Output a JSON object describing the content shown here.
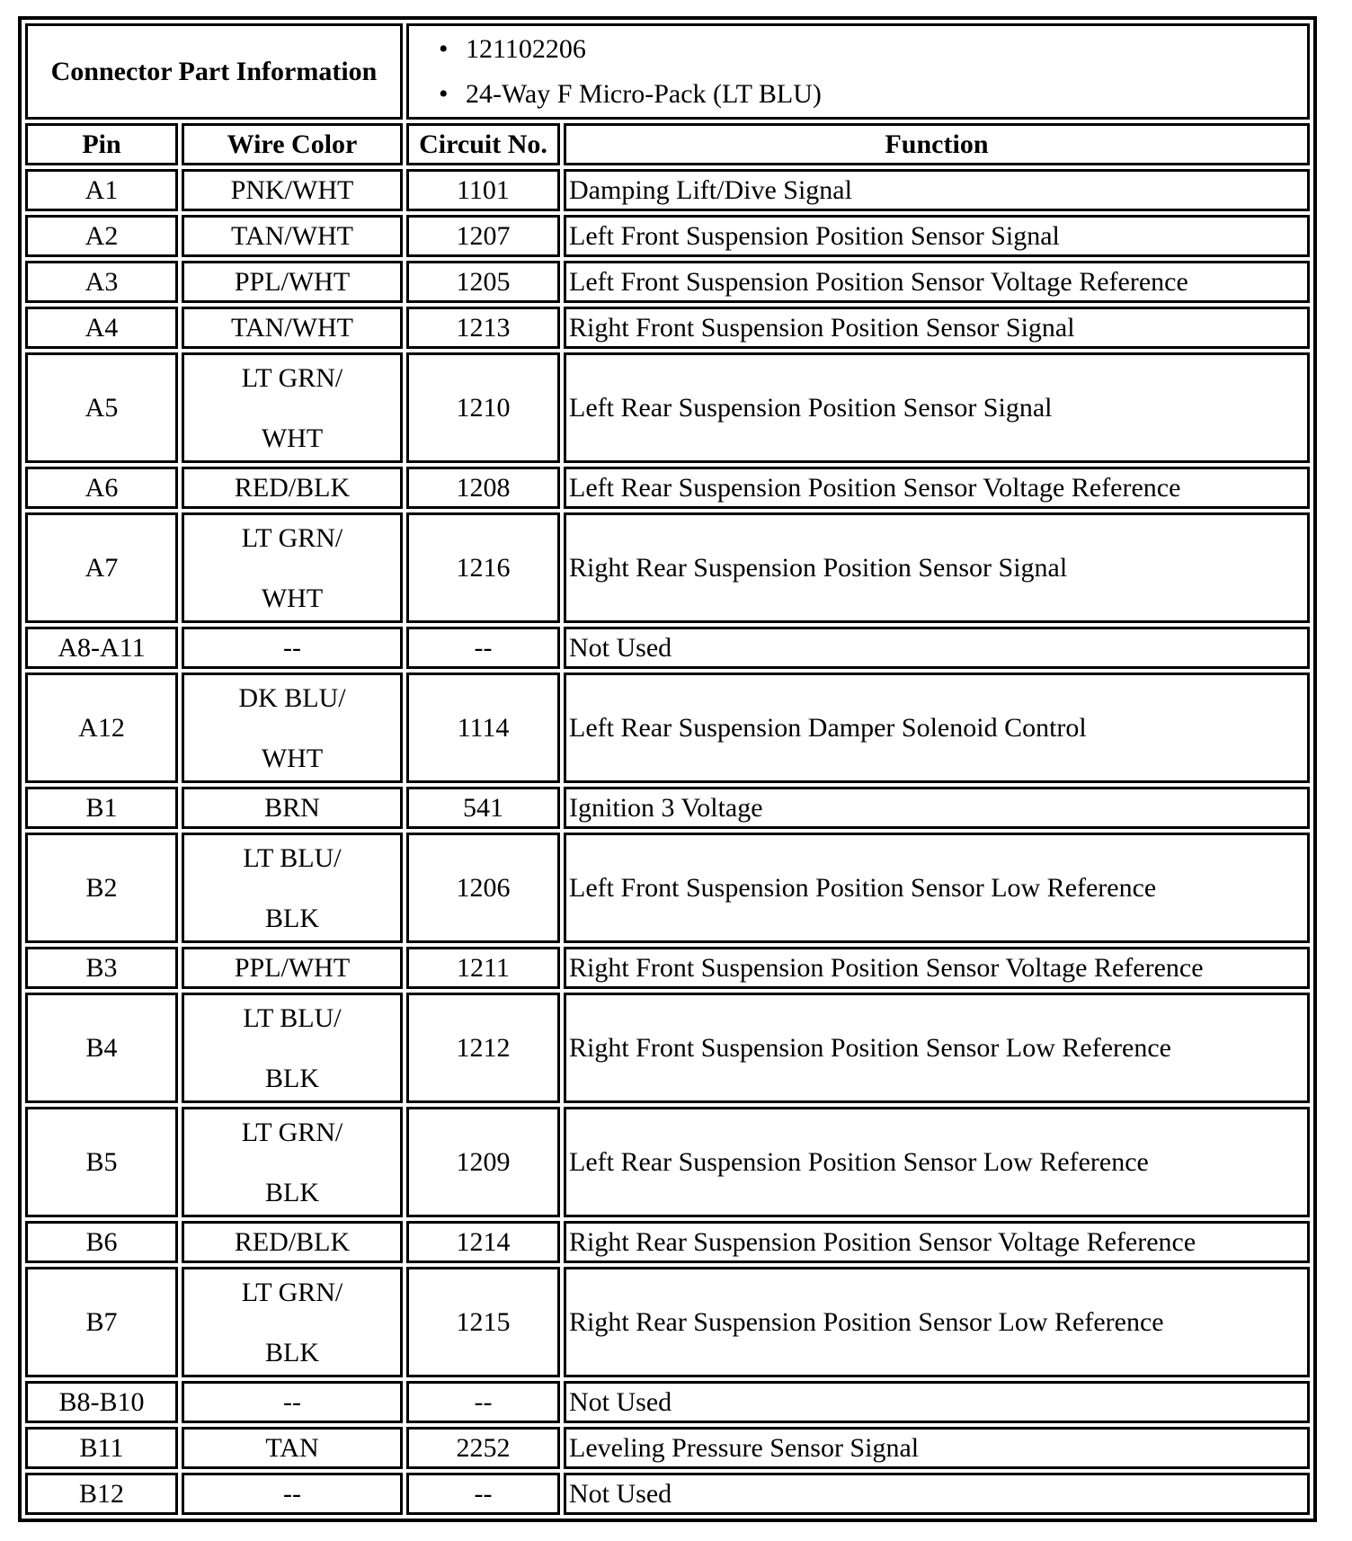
{
  "connector_info": {
    "label": "Connector Part Information",
    "items": [
      "121102206",
      "24-Way F Micro-Pack (LT BLU)"
    ]
  },
  "headers": {
    "pin": "Pin",
    "wire_color": "Wire Color",
    "circuit": "Circuit No.",
    "function": "Function"
  },
  "rows": [
    {
      "pin": "A1",
      "wire": [
        "PNK/WHT"
      ],
      "circuit": "1101",
      "function": "Damping Lift/Dive Signal"
    },
    {
      "pin": "A2",
      "wire": [
        "TAN/WHT"
      ],
      "circuit": "1207",
      "function": "Left Front Suspension Position Sensor Signal"
    },
    {
      "pin": "A3",
      "wire": [
        "PPL/WHT"
      ],
      "circuit": "1205",
      "function": "Left Front Suspension Position Sensor Voltage Reference"
    },
    {
      "pin": "A4",
      "wire": [
        "TAN/WHT"
      ],
      "circuit": "1213",
      "function": "Right Front Suspension Position Sensor Signal"
    },
    {
      "pin": "A5",
      "wire": [
        "LT GRN/",
        "WHT"
      ],
      "circuit": "1210",
      "function": "Left Rear Suspension Position Sensor Signal"
    },
    {
      "pin": "A6",
      "wire": [
        "RED/BLK"
      ],
      "circuit": "1208",
      "function": "Left Rear Suspension Position Sensor Voltage Reference"
    },
    {
      "pin": "A7",
      "wire": [
        "LT GRN/",
        "WHT"
      ],
      "circuit": "1216",
      "function": "Right Rear Suspension Position Sensor Signal"
    },
    {
      "pin": "A8-A11",
      "wire": [
        "--"
      ],
      "circuit": "--",
      "function": "Not Used"
    },
    {
      "pin": "A12",
      "wire": [
        "DK BLU/",
        "WHT"
      ],
      "circuit": "1114",
      "function": "Left Rear Suspension Damper Solenoid Control"
    },
    {
      "pin": "B1",
      "wire": [
        "BRN"
      ],
      "circuit": "541",
      "function": "Ignition 3 Voltage"
    },
    {
      "pin": "B2",
      "wire": [
        "LT BLU/",
        "BLK"
      ],
      "circuit": "1206",
      "function": "Left Front Suspension Position Sensor Low Reference"
    },
    {
      "pin": "B3",
      "wire": [
        "PPL/WHT"
      ],
      "circuit": "1211",
      "function": "Right Front Suspension Position Sensor Voltage Reference"
    },
    {
      "pin": "B4",
      "wire": [
        "LT BLU/",
        "BLK"
      ],
      "circuit": "1212",
      "function": "Right Front Suspension Position Sensor Low Reference"
    },
    {
      "pin": "B5",
      "wire": [
        "LT GRN/",
        "BLK"
      ],
      "circuit": "1209",
      "function": "Left Rear Suspension Position Sensor Low Reference"
    },
    {
      "pin": "B6",
      "wire": [
        "RED/BLK"
      ],
      "circuit": "1214",
      "function": "Right Rear Suspension Position Sensor Voltage Reference"
    },
    {
      "pin": "B7",
      "wire": [
        "LT GRN/",
        "BLK"
      ],
      "circuit": "1215",
      "function": "Right Rear Suspension Position Sensor Low Reference"
    },
    {
      "pin": "B8-B10",
      "wire": [
        "--"
      ],
      "circuit": "--",
      "function": "Not Used"
    },
    {
      "pin": "B11",
      "wire": [
        "TAN"
      ],
      "circuit": "2252",
      "function": "Leveling Pressure Sensor Signal"
    },
    {
      "pin": "B12",
      "wire": [
        "--"
      ],
      "circuit": "--",
      "function": "Not Used"
    }
  ]
}
